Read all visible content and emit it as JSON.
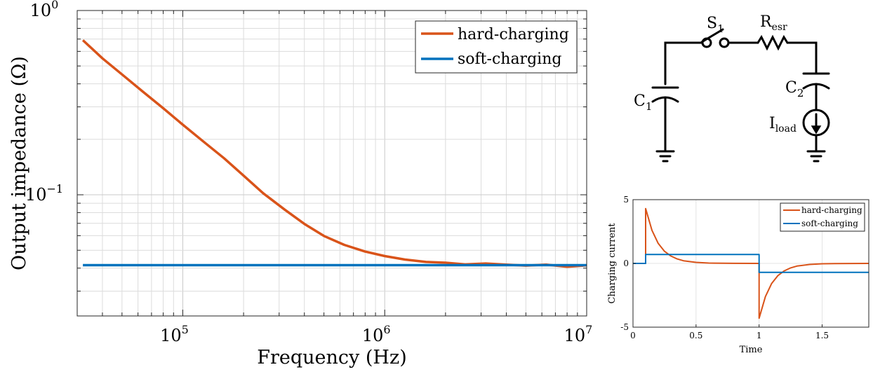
{
  "chart_data": [
    {
      "type": "line",
      "title": "",
      "xlabel": "Frequency (Hz)",
      "ylabel": "Output impedance (Ω)",
      "xscale": "log",
      "yscale": "log",
      "xlim": [
        30000,
        10000000
      ],
      "ylim": [
        0.022,
        1.0
      ],
      "x_ticks": [
        {
          "value": 100000,
          "base": "10",
          "exp": "5"
        },
        {
          "value": 1000000,
          "base": "10",
          "exp": "6"
        },
        {
          "value": 10000000,
          "base": "10",
          "exp": "7"
        }
      ],
      "y_ticks": [
        {
          "value": 0.1,
          "base": "10",
          "exp": "−1"
        },
        {
          "value": 1.0,
          "base": "10",
          "exp": "0"
        }
      ],
      "grid": true,
      "legend_position": "top-right",
      "series": [
        {
          "name": "hard-charging",
          "color": "#D95319",
          "x": [
            32000,
            40000,
            50000,
            63000,
            80000,
            100000,
            126000,
            160000,
            200000,
            250000,
            320000,
            400000,
            500000,
            630000,
            800000,
            1000000,
            1260000,
            1600000,
            2000000,
            2500000,
            3160000,
            4000000,
            5000000,
            6300000,
            8000000,
            10000000
          ],
          "y": [
            0.69,
            0.55,
            0.45,
            0.365,
            0.295,
            0.24,
            0.195,
            0.158,
            0.127,
            0.102,
            0.083,
            0.0695,
            0.0598,
            0.0535,
            0.0492,
            0.0465,
            0.0445,
            0.0432,
            0.0428,
            0.0419,
            0.0424,
            0.0418,
            0.0413,
            0.0418,
            0.0407,
            0.0414
          ]
        },
        {
          "name": "soft-charging",
          "color": "#0072BD",
          "x": [
            32000,
            10000000
          ],
          "y": [
            0.0415,
            0.0415
          ]
        }
      ]
    },
    {
      "type": "line",
      "title": "",
      "xlabel": "Time",
      "ylabel": "Charging current",
      "xlim": [
        0,
        1.87
      ],
      "ylim": [
        -5,
        5
      ],
      "x_ticks": [
        "0",
        "0.5",
        "1",
        "1.5"
      ],
      "x_tick_values": [
        0,
        0.5,
        1,
        1.5
      ],
      "y_ticks": [
        "-5",
        "0",
        "5"
      ],
      "y_tick_values": [
        -5,
        0,
        5
      ],
      "grid": true,
      "legend_position": "top-right",
      "series": [
        {
          "name": "hard-charging",
          "color": "#D95319",
          "x": [
            0,
            0.1,
            0.1,
            0.15,
            0.2,
            0.25,
            0.3,
            0.35,
            0.4,
            0.5,
            0.6,
            0.8,
            1.0,
            1.0,
            1.05,
            1.1,
            1.15,
            1.2,
            1.25,
            1.3,
            1.4,
            1.5,
            1.6,
            1.87
          ],
          "y": [
            0,
            0,
            4.3,
            2.6,
            1.57,
            0.95,
            0.58,
            0.35,
            0.21,
            0.08,
            0.03,
            0.004,
            0,
            -4.3,
            -2.6,
            -1.57,
            -0.95,
            -0.58,
            -0.35,
            -0.21,
            -0.08,
            -0.03,
            -0.01,
            0
          ]
        },
        {
          "name": "soft-charging",
          "color": "#0072BD",
          "x": [
            0,
            0.1,
            0.1,
            1.0,
            1.0,
            1.87
          ],
          "y": [
            0,
            0,
            0.7,
            0.7,
            -0.7,
            -0.7
          ]
        }
      ]
    }
  ],
  "circuit": {
    "switch_label": "S",
    "switch_sub": "1",
    "resistor_label": "R",
    "resistor_sub": "esr",
    "cap1_label": "C",
    "cap1_sub": "1",
    "cap2_label": "C",
    "cap2_sub": "2",
    "source_label": "I",
    "source_sub": "load"
  }
}
